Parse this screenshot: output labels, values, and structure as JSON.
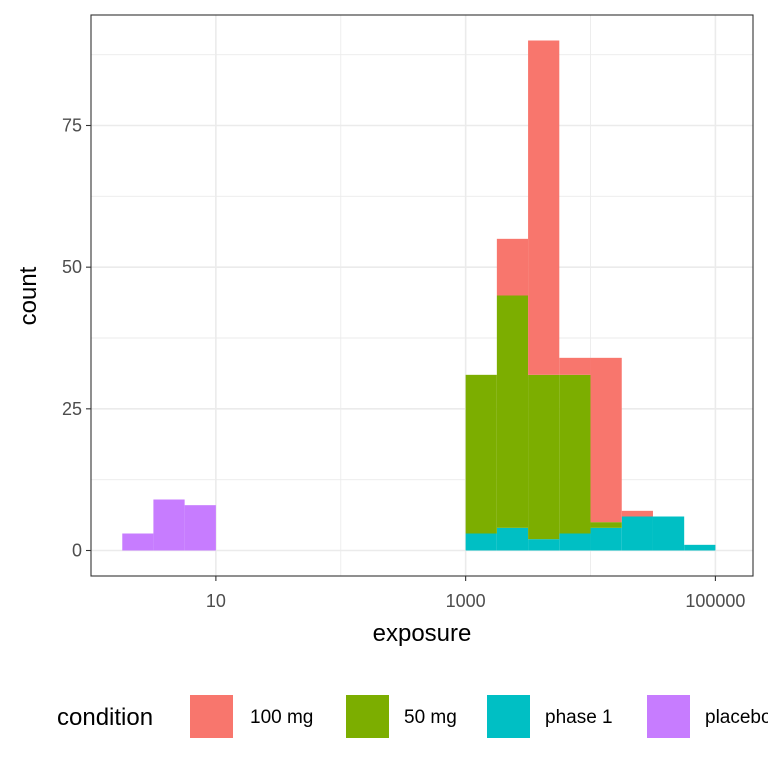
{
  "chart_data": {
    "type": "bar",
    "subtype": "stacked-histogram",
    "x_scale": "log10",
    "xlabel": "exposure",
    "ylabel": "count",
    "xlim": [
      1.0,
      200000
    ],
    "ylim": [
      -4.5,
      94.5
    ],
    "x_ticks": [
      10,
      1000,
      100000
    ],
    "x_tick_labels": [
      "10",
      "1000",
      "100000"
    ],
    "y_ticks": [
      0,
      25,
      50,
      75
    ],
    "y_tick_labels": [
      "0",
      "25",
      "50",
      "75"
    ],
    "grid": true,
    "legend": {
      "title": "condition",
      "position": "bottom"
    },
    "series": [
      {
        "name": "phase 1",
        "color": "#00BFC4",
        "bins": [
          {
            "x0": 1000,
            "x1": 1778,
            "value": 3
          },
          {
            "x0": 1778,
            "x1": 3162,
            "value": 4
          },
          {
            "x0": 3162,
            "x1": 5623,
            "value": 2
          },
          {
            "x0": 5623,
            "x1": 10000,
            "value": 3
          },
          {
            "x0": 10000,
            "x1": 17783,
            "value": 4
          },
          {
            "x0": 17783,
            "x1": 31623,
            "value": 6
          },
          {
            "x0": 31623,
            "x1": 56234,
            "value": 6
          },
          {
            "x0": 56234,
            "x1": 100000,
            "value": 1
          }
        ]
      },
      {
        "name": "50 mg",
        "color": "#7CAE00",
        "bins": [
          {
            "x0": 1000,
            "x1": 1778,
            "value": 28
          },
          {
            "x0": 1778,
            "x1": 3162,
            "value": 41
          },
          {
            "x0": 3162,
            "x1": 5623,
            "value": 29
          },
          {
            "x0": 5623,
            "x1": 10000,
            "value": 28
          },
          {
            "x0": 10000,
            "x1": 17783,
            "value": 1
          }
        ]
      },
      {
        "name": "100 mg",
        "color": "#F8766D",
        "bins": [
          {
            "x0": 1778,
            "x1": 3162,
            "value": 10
          },
          {
            "x0": 3162,
            "x1": 5623,
            "value": 59
          },
          {
            "x0": 5623,
            "x1": 10000,
            "value": 3
          },
          {
            "x0": 10000,
            "x1": 17783,
            "value": 29
          },
          {
            "x0": 17783,
            "x1": 31623,
            "value": 1
          }
        ]
      },
      {
        "name": "placebo",
        "color": "#C77CFF",
        "bins": [
          {
            "x0": 1.78,
            "x1": 3.16,
            "value": 3
          },
          {
            "x0": 3.16,
            "x1": 5.62,
            "value": 9
          },
          {
            "x0": 5.62,
            "x1": 10,
            "value": 8
          }
        ]
      }
    ],
    "stack_order": [
      "phase 1",
      "50 mg",
      "100 mg",
      "placebo"
    ],
    "legend_order": [
      "100 mg",
      "50 mg",
      "phase 1",
      "placebo"
    ]
  }
}
